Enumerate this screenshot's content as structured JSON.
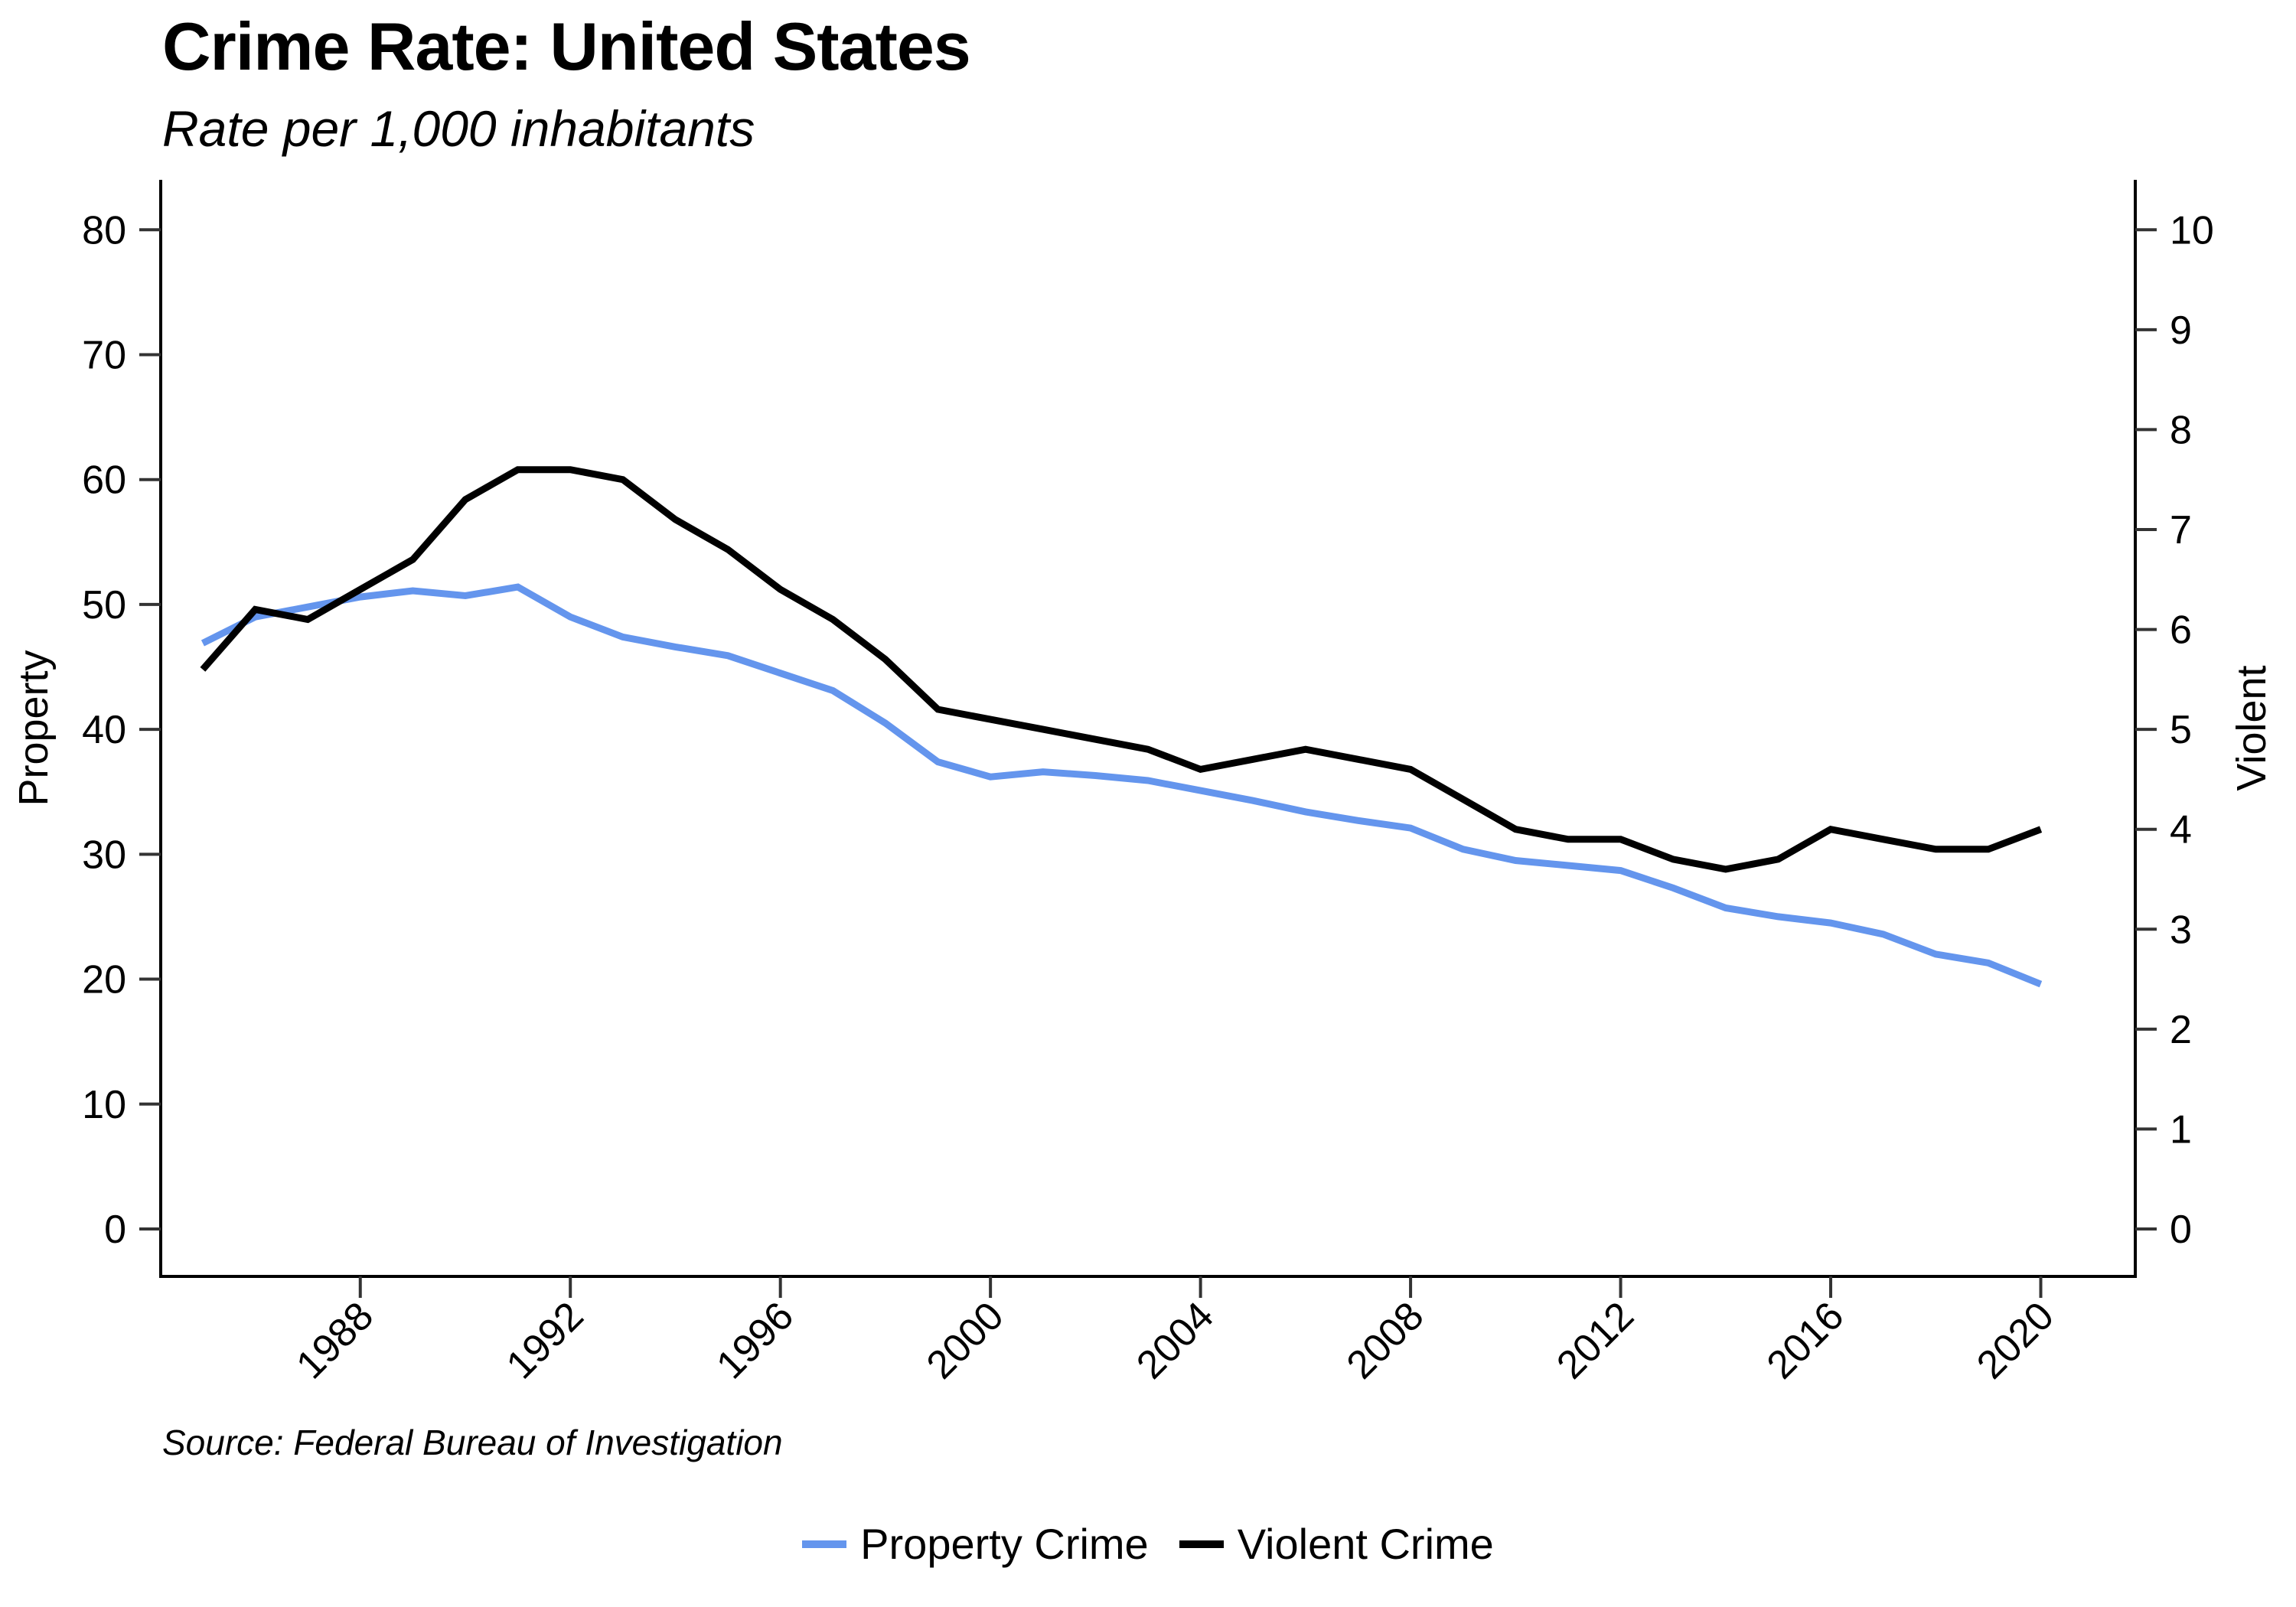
{
  "chart_data": {
    "type": "line",
    "title": "Crime Rate: United States",
    "subtitle": "Rate per 1,000 inhabitants",
    "source": "Source: Federal Bureau of Investigation",
    "xlabel": "",
    "ylabel_left": "Property",
    "ylabel_right": "Violent",
    "xlim": [
      1984.2,
      2021.8
    ],
    "ylim_left": [
      -3.8,
      84
    ],
    "ylim_right": [
      -0.475,
      10.5
    ],
    "yticks_left": [
      0,
      10,
      20,
      30,
      40,
      50,
      60,
      70,
      80
    ],
    "yticks_right": [
      0,
      1,
      2,
      3,
      4,
      5,
      6,
      7,
      8,
      9,
      10
    ],
    "xticks": [
      1988,
      1992,
      1996,
      2000,
      2004,
      2008,
      2012,
      2016,
      2020
    ],
    "grid": false,
    "legend_position": "bottom",
    "x": [
      1985,
      1986,
      1987,
      1988,
      1989,
      1990,
      1991,
      1992,
      1993,
      1994,
      1995,
      1996,
      1997,
      1998,
      1999,
      2000,
      2001,
      2002,
      2003,
      2004,
      2005,
      2006,
      2007,
      2008,
      2009,
      2010,
      2011,
      2012,
      2013,
      2014,
      2015,
      2016,
      2017,
      2018,
      2019,
      2020
    ],
    "series": [
      {
        "name": "Property Crime",
        "axis": "left",
        "color": "#6495ED",
        "values": [
          46.9,
          49.0,
          49.8,
          50.6,
          51.1,
          50.7,
          51.4,
          49.0,
          47.4,
          46.6,
          45.9,
          44.5,
          43.1,
          40.5,
          37.4,
          36.2,
          36.6,
          36.3,
          35.9,
          35.1,
          34.3,
          33.4,
          32.7,
          32.1,
          30.4,
          29.5,
          29.1,
          28.7,
          27.3,
          25.7,
          25.0,
          24.5,
          23.6,
          22.0,
          21.3,
          19.6
        ]
      },
      {
        "name": "Violent Crime",
        "axis": "right",
        "color": "#000000",
        "values": [
          5.6,
          6.2,
          6.1,
          6.4,
          6.7,
          7.3,
          7.6,
          7.6,
          7.5,
          7.1,
          6.8,
          6.4,
          6.1,
          5.7,
          5.2,
          5.1,
          5.0,
          4.9,
          4.8,
          4.6,
          4.7,
          4.8,
          4.7,
          4.6,
          4.3,
          4.0,
          3.9,
          3.9,
          3.7,
          3.6,
          3.7,
          4.0,
          3.9,
          3.8,
          3.8,
          4.0
        ]
      }
    ]
  }
}
